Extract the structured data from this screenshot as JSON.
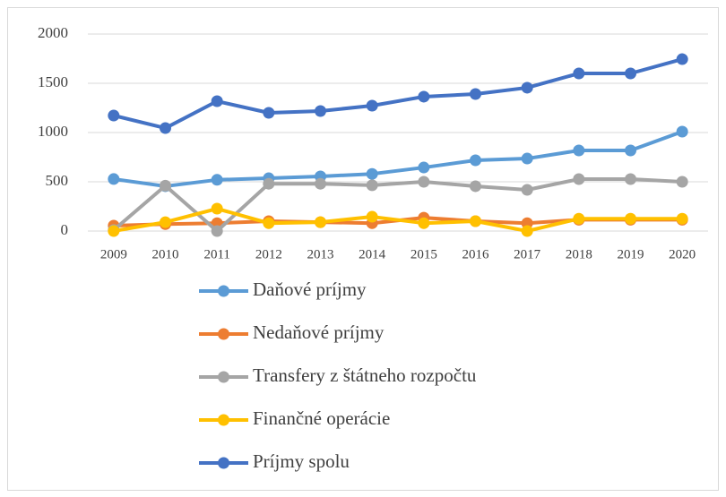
{
  "chart_data": {
    "type": "line",
    "x": [
      "2009",
      "2010",
      "2011",
      "2012",
      "2013",
      "2014",
      "2015",
      "2016",
      "2017",
      "2018",
      "2019",
      "2020"
    ],
    "series": [
      {
        "name": "Daňové príjmy",
        "color": "#5b9bd5",
        "values": [
          528,
          455,
          520,
          536,
          555,
          580,
          645,
          718,
          736,
          818,
          818,
          1009
        ]
      },
      {
        "name": "Nedaňové príjmy",
        "color": "#ed7d31",
        "values": [
          55,
          70,
          80,
          100,
          90,
          80,
          135,
          100,
          80,
          115,
          115,
          115
        ]
      },
      {
        "name": "Transfery z štátneho rozpočtu",
        "color": "#a5a5a5",
        "values": [
          10,
          460,
          0,
          480,
          480,
          465,
          500,
          455,
          418,
          527,
          527,
          500
        ]
      },
      {
        "name": "Finančné operácie",
        "color": "#ffc000",
        "values": [
          0,
          90,
          227,
          80,
          90,
          145,
          80,
          100,
          0,
          125,
          125,
          125
        ]
      },
      {
        "name": "Príjmy spolu",
        "color": "#4472c4",
        "values": [
          1173,
          1045,
          1318,
          1200,
          1218,
          1273,
          1364,
          1391,
          1455,
          1600,
          1600,
          1745
        ]
      }
    ],
    "ylim": [
      0,
      2000
    ],
    "yticks": [
      0,
      500,
      1000,
      1500,
      2000
    ],
    "grid": true,
    "legend": "bottom"
  }
}
